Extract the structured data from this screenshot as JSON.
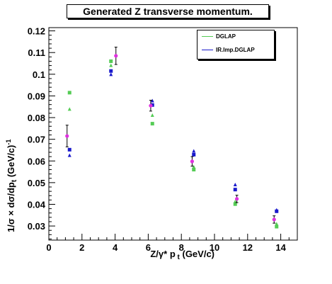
{
  "chart_data": {
    "type": "scatter",
    "title": "Generated Z transverse momentum.",
    "xlabel": "Z/γ* p_t (GeV/c)",
    "ylabel": "1/σ × dσ/dp_t (GeV/c)^-1",
    "xlim": [
      0,
      15
    ],
    "ylim": [
      0.0235,
      0.1215
    ],
    "x_ticks": [
      0,
      2,
      4,
      6,
      8,
      10,
      12,
      14
    ],
    "y_ticks": [
      0.03,
      0.04,
      0.05,
      0.06,
      0.07,
      0.08,
      0.09,
      0.1,
      0.11,
      0.12
    ],
    "legend": {
      "placement": "top-right",
      "entries": [
        "DGLAP",
        "IR.Imp.DGLAP"
      ]
    },
    "series": [
      {
        "name": "DGLAP",
        "color": "#55cc55",
        "points": [
          {
            "x": 1.25,
            "y": 0.0915,
            "marker": "square"
          },
          {
            "x": 1.25,
            "y": 0.0838,
            "marker": "triangle"
          },
          {
            "x": 3.75,
            "y": 0.106,
            "marker": "square"
          },
          {
            "x": 3.75,
            "y": 0.104,
            "marker": "triangle"
          },
          {
            "x": 6.25,
            "y": 0.0772,
            "marker": "square"
          },
          {
            "x": 6.25,
            "y": 0.081,
            "marker": "triangle"
          },
          {
            "x": 8.75,
            "y": 0.056,
            "marker": "square"
          },
          {
            "x": 8.75,
            "y": 0.0572,
            "marker": "triangle"
          },
          {
            "x": 11.25,
            "y": 0.0401,
            "marker": "square"
          },
          {
            "x": 11.25,
            "y": 0.0412,
            "marker": "triangle"
          },
          {
            "x": 13.75,
            "y": 0.0297,
            "marker": "square"
          },
          {
            "x": 13.75,
            "y": 0.0309,
            "marker": "triangle"
          }
        ]
      },
      {
        "name": "IR.Imp.DGLAP",
        "color": "#1a1acc",
        "points": [
          {
            "x": 1.25,
            "y": 0.0652,
            "marker": "square"
          },
          {
            "x": 1.25,
            "y": 0.0625,
            "marker": "triangle"
          },
          {
            "x": 3.75,
            "y": 0.1015,
            "marker": "square"
          },
          {
            "x": 3.75,
            "y": 0.0998,
            "marker": "triangle"
          },
          {
            "x": 6.25,
            "y": 0.0858,
            "marker": "square"
          },
          {
            "x": 6.25,
            "y": 0.0877,
            "marker": "triangle"
          },
          {
            "x": 8.75,
            "y": 0.0629,
            "marker": "square"
          },
          {
            "x": 8.75,
            "y": 0.0645,
            "marker": "triangle"
          },
          {
            "x": 11.25,
            "y": 0.0468,
            "marker": "square"
          },
          {
            "x": 11.25,
            "y": 0.049,
            "marker": "triangle"
          },
          {
            "x": 13.75,
            "y": 0.0368,
            "marker": "square"
          },
          {
            "x": 13.75,
            "y": 0.0373,
            "marker": "triangle"
          }
        ]
      },
      {
        "name": "",
        "color": "#e030e0",
        "points": [
          {
            "x": 1.1,
            "y": 0.0715,
            "err": 0.005
          },
          {
            "x": 4.05,
            "y": 0.1085,
            "err": 0.004
          },
          {
            "x": 6.15,
            "y": 0.0855,
            "err": 0.0025
          },
          {
            "x": 8.65,
            "y": 0.0598,
            "err": 0.0022
          },
          {
            "x": 11.35,
            "y": 0.0425,
            "err": 0.0017
          },
          {
            "x": 13.6,
            "y": 0.033,
            "err": 0.0017
          }
        ]
      }
    ]
  }
}
